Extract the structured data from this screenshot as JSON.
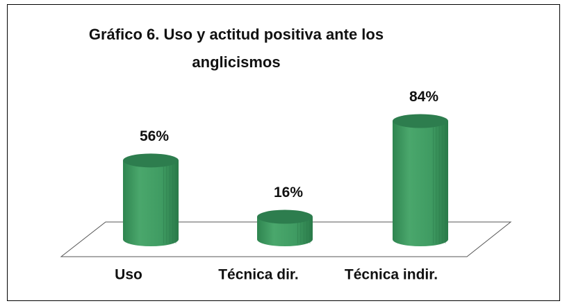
{
  "chart_data": {
    "type": "bar3d",
    "title": "Gráfico 6. Uso y actitud positiva ante los anglicismos",
    "categories": [
      "Uso",
      "Técnica dir.",
      "Técnica indir."
    ],
    "values": [
      56,
      16,
      84
    ],
    "value_labels": [
      "56%",
      "16%",
      "84%"
    ],
    "color": "#3f9b62"
  }
}
